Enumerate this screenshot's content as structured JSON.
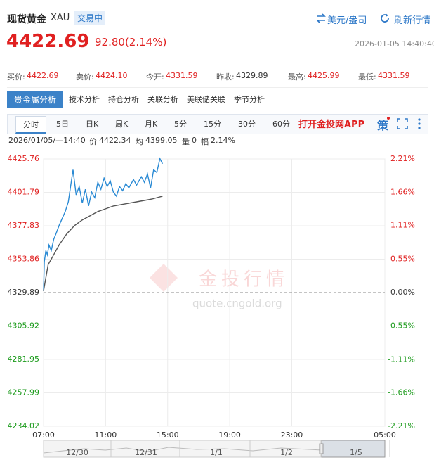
{
  "header": {
    "name": "现货黄金",
    "code": "XAU",
    "status": "交易中",
    "unit": "美元/盎司",
    "refresh": "刷新行情"
  },
  "quote": {
    "price": "4422.69",
    "change": "92.80(2.14%)",
    "time": "2026-01-05 14:40:40",
    "stats": [
      {
        "label": "买价:",
        "value": "4422.69"
      },
      {
        "label": "卖价:",
        "value": "4424.10"
      },
      {
        "label": "今开:",
        "value": "4331.59"
      },
      {
        "label": "昨收:",
        "value": "4329.89"
      },
      {
        "label": "最高:",
        "value": "4425.99"
      },
      {
        "label": "最低:",
        "value": "4331.59"
      }
    ]
  },
  "tabs": [
    "贵金属分析",
    "技术分析",
    "持仓分析",
    "关联分析",
    "美联储关联",
    "季节分析"
  ],
  "periods": [
    "分时",
    "5日",
    "日K",
    "周K",
    "月K",
    "5分",
    "15分",
    "30分",
    "60分"
  ],
  "app_link": "打开金投网APP",
  "strategy": "策",
  "info": {
    "time": "2026/01/05/—14:40",
    "items": [
      {
        "label": "价",
        "value": "4422.34"
      },
      {
        "label": "均",
        "value": "4399.05"
      },
      {
        "label": "量",
        "value": "0"
      },
      {
        "label": "幅",
        "value": "2.14%"
      }
    ]
  },
  "chart_data": {
    "type": "line",
    "grid": true,
    "xlim": [
      7,
      29
    ],
    "xticks": [
      {
        "value": 7,
        "label": "07:00"
      },
      {
        "value": 11,
        "label": "11:00"
      },
      {
        "value": 15,
        "label": "15:00"
      },
      {
        "value": 19,
        "label": "19:00"
      },
      {
        "value": 23,
        "label": "23:00"
      },
      {
        "value": 29,
        "label": "05:00"
      }
    ],
    "ylim": [
      4234.02,
      4425.76
    ],
    "yticks": [
      4425.76,
      4401.79,
      4377.83,
      4353.86,
      4329.89,
      4305.92,
      4281.95,
      4257.99,
      4234.02
    ],
    "y2lim": [
      -2.21,
      2.21
    ],
    "y2ticks": [
      {
        "value": 2.21,
        "label": "2.21%"
      },
      {
        "value": 1.66,
        "label": "1.66%"
      },
      {
        "value": 1.11,
        "label": "1.11%"
      },
      {
        "value": 0.55,
        "label": "0.55%"
      },
      {
        "value": 0,
        "label": "0.00%"
      },
      {
        "value": -0.55,
        "label": "-0.55%"
      },
      {
        "value": -1.11,
        "label": "-1.11%"
      },
      {
        "value": -1.66,
        "label": "-1.66%"
      },
      {
        "value": -2.21,
        "label": "-2.21%"
      }
    ],
    "series": [
      {
        "name": "价",
        "color": "#2a8ad4",
        "x": [
          7.0,
          7.05,
          7.15,
          7.25,
          7.35,
          7.5,
          7.65,
          7.8,
          8.0,
          8.2,
          8.4,
          8.6,
          8.9,
          9.1,
          9.3,
          9.5,
          9.7,
          9.9,
          10.1,
          10.3,
          10.5,
          10.7,
          10.9,
          11.1,
          11.3,
          11.5,
          11.7,
          11.9,
          12.1,
          12.3,
          12.5,
          12.8,
          13.0,
          13.3,
          13.5,
          13.7,
          13.9,
          14.1,
          14.3,
          14.5,
          14.67
        ],
        "values": [
          4331,
          4352,
          4360,
          4357,
          4364,
          4360,
          4368,
          4372,
          4378,
          4383,
          4388,
          4395,
          4418,
          4400,
          4406,
          4394,
          4404,
          4392,
          4402,
          4398,
          4409,
          4404,
          4412,
          4406,
          4410,
          4402,
          4399,
          4406,
          4403,
          4408,
          4405,
          4411,
          4407,
          4413,
          4409,
          4415,
          4405,
          4418,
          4416,
          4426,
          4422.34
        ]
      },
      {
        "name": "均",
        "color": "#555555",
        "x": [
          7.0,
          7.3,
          7.6,
          8.0,
          8.5,
          9.0,
          9.5,
          10.0,
          10.5,
          11.0,
          11.5,
          12.0,
          12.5,
          13.0,
          13.5,
          14.0,
          14.67
        ],
        "values": [
          4331,
          4350,
          4356,
          4364,
          4372,
          4378,
          4382,
          4385,
          4388,
          4390,
          4392,
          4393,
          4394,
          4395,
          4396,
          4397,
          4399.05
        ]
      }
    ]
  },
  "navigator": [
    "12/30",
    "12/31",
    "1/1",
    "1/2",
    "1/5"
  ],
  "watermark": {
    "title": "金投行情",
    "url": "quote.cngold.org"
  }
}
